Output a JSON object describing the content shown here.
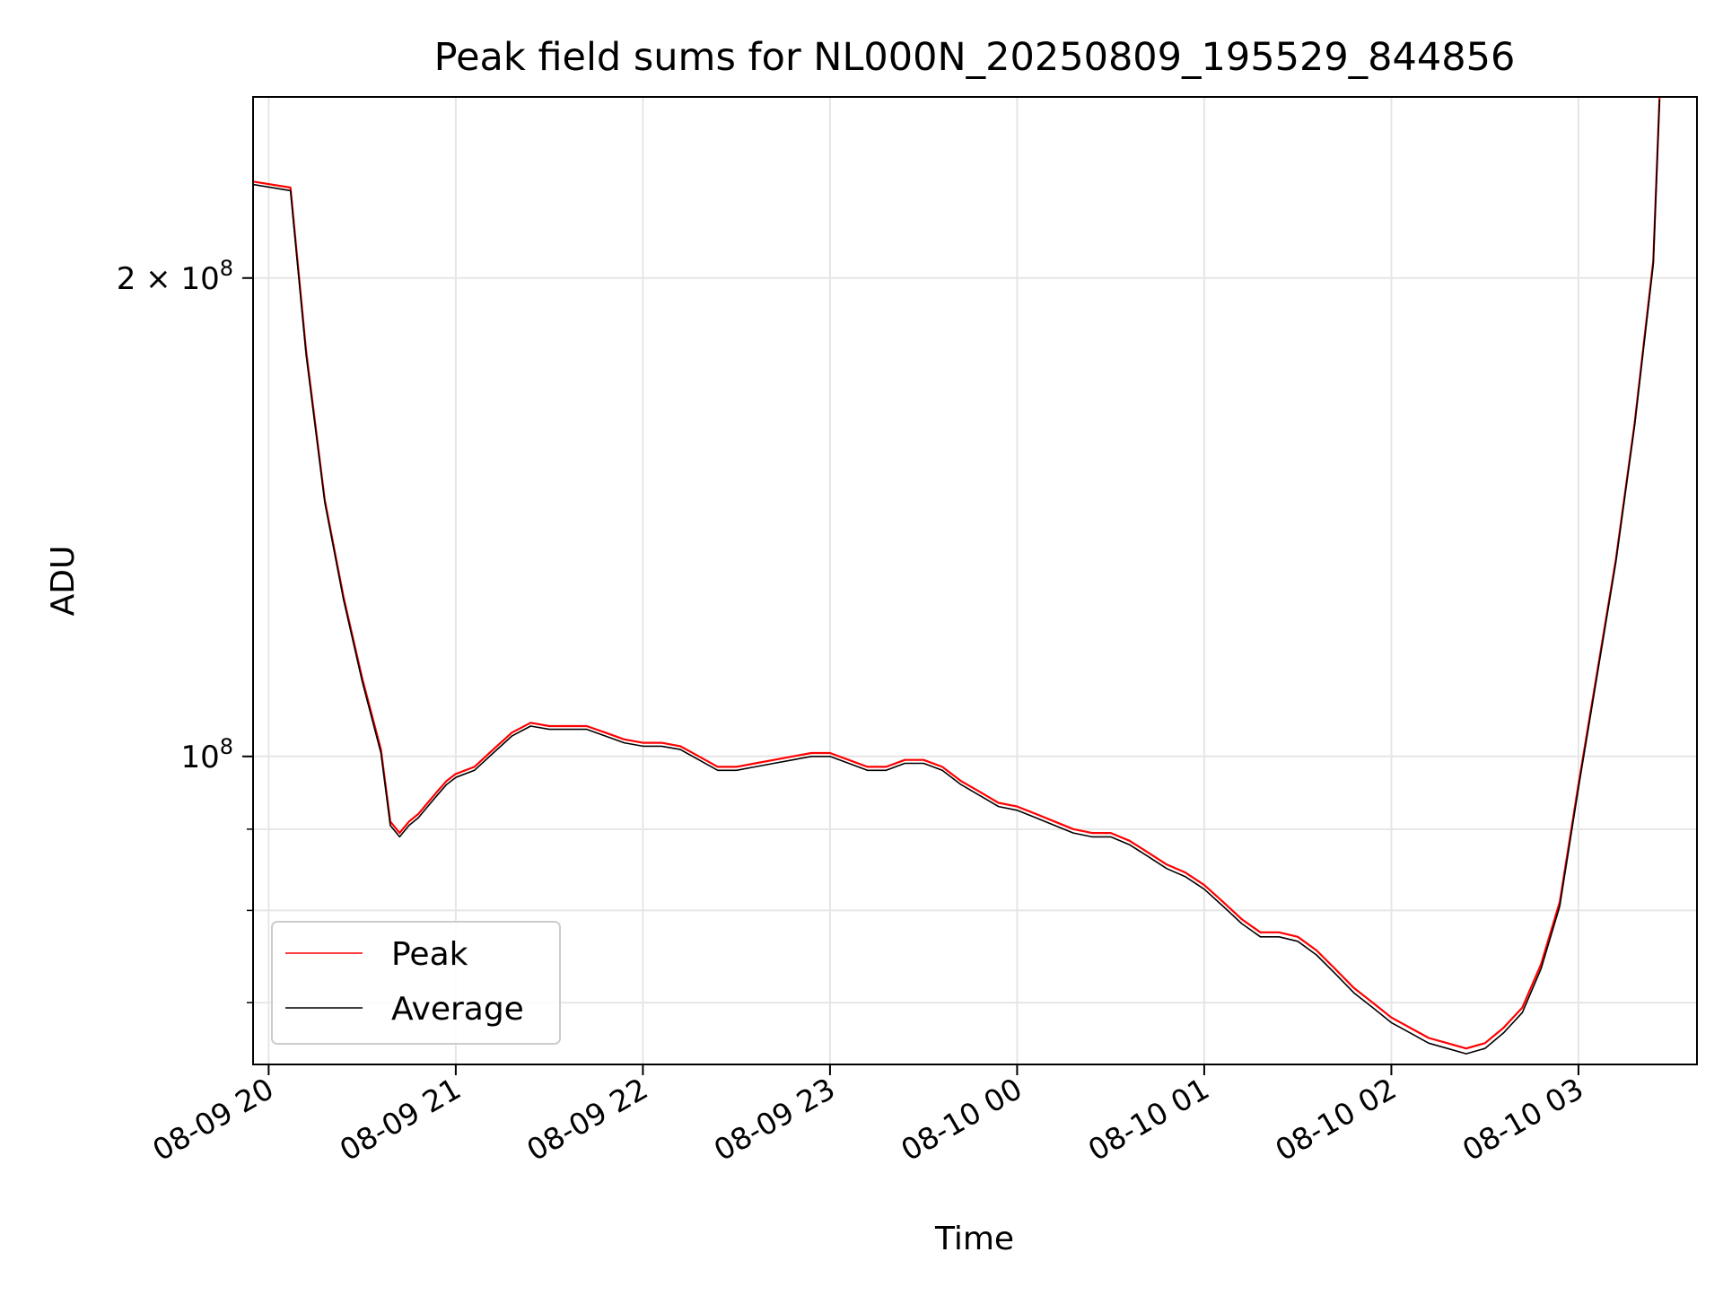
{
  "chart_data": {
    "type": "line",
    "title": "Peak field sums for NL000N_20250809_195529_844856",
    "xlabel": "Time",
    "ylabel": "ADU",
    "yscale": "log",
    "grid": true,
    "legend_position": "lower-left",
    "x_ticks": [
      "08-09 20",
      "08-09 21",
      "08-09 22",
      "08-09 23",
      "08-10 00",
      "08-10 01",
      "08-10 02",
      "08-10 03"
    ],
    "x_tick_values": [
      "2025-08-09 20:00",
      "2025-08-09 21:00",
      "2025-08-09 22:00",
      "2025-08-09 23:00",
      "2025-08-10 00:00",
      "2025-08-10 01:00",
      "2025-08-10 02:00",
      "2025-08-10 03:00"
    ],
    "y_major_ticks": [
      {
        "value": 100000000,
        "label": "10^8"
      },
      {
        "value": 200000000,
        "label": "2 × 10^8"
      }
    ],
    "y_minor_gridlines": [
      70000000,
      80000000,
      90000000
    ],
    "xlim": [
      "2025-08-09 19:55",
      "2025-08-10 03:38"
    ],
    "ylim": [
      64000000,
      260000000
    ],
    "series": [
      {
        "name": "Peak",
        "color": "#ff0000",
        "x": [
          "2025-08-09 19:55",
          "2025-08-09 20:07",
          "2025-08-09 20:12",
          "2025-08-09 20:18",
          "2025-08-09 20:24",
          "2025-08-09 20:30",
          "2025-08-09 20:36",
          "2025-08-09 20:39",
          "2025-08-09 20:42",
          "2025-08-09 20:45",
          "2025-08-09 20:48",
          "2025-08-09 20:51",
          "2025-08-09 20:54",
          "2025-08-09 20:57",
          "2025-08-09 21:00",
          "2025-08-09 21:06",
          "2025-08-09 21:12",
          "2025-08-09 21:18",
          "2025-08-09 21:24",
          "2025-08-09 21:30",
          "2025-08-09 21:36",
          "2025-08-09 21:42",
          "2025-08-09 21:48",
          "2025-08-09 21:54",
          "2025-08-09 22:00",
          "2025-08-09 22:06",
          "2025-08-09 22:12",
          "2025-08-09 22:18",
          "2025-08-09 22:24",
          "2025-08-09 22:30",
          "2025-08-09 22:36",
          "2025-08-09 22:42",
          "2025-08-09 22:48",
          "2025-08-09 22:54",
          "2025-08-09 23:00",
          "2025-08-09 23:06",
          "2025-08-09 23:12",
          "2025-08-09 23:18",
          "2025-08-09 23:24",
          "2025-08-09 23:30",
          "2025-08-09 23:36",
          "2025-08-09 23:42",
          "2025-08-09 23:48",
          "2025-08-09 23:54",
          "2025-08-10 00:00",
          "2025-08-10 00:06",
          "2025-08-10 00:12",
          "2025-08-10 00:18",
          "2025-08-10 00:24",
          "2025-08-10 00:30",
          "2025-08-10 00:36",
          "2025-08-10 00:42",
          "2025-08-10 00:48",
          "2025-08-10 00:54",
          "2025-08-10 01:00",
          "2025-08-10 01:06",
          "2025-08-10 01:12",
          "2025-08-10 01:18",
          "2025-08-10 01:24",
          "2025-08-10 01:30",
          "2025-08-10 01:36",
          "2025-08-10 01:42",
          "2025-08-10 01:48",
          "2025-08-10 01:54",
          "2025-08-10 02:00",
          "2025-08-10 02:06",
          "2025-08-10 02:12",
          "2025-08-10 02:18",
          "2025-08-10 02:24",
          "2025-08-10 02:30",
          "2025-08-10 02:36",
          "2025-08-10 02:42",
          "2025-08-10 02:48",
          "2025-08-10 02:54",
          "2025-08-10 03:00",
          "2025-08-10 03:06",
          "2025-08-10 03:12",
          "2025-08-10 03:18",
          "2025-08-10 03:24",
          "2025-08-10 03:26"
        ],
        "values": [
          230000000,
          228000000,
          180000000,
          145000000,
          126000000,
          112000000,
          101000000,
          91000000,
          89500000,
          91000000,
          92000000,
          93500000,
          95000000,
          96500000,
          97500000,
          98500000,
          101000000,
          103500000,
          105000000,
          104500000,
          104500000,
          104500000,
          103500000,
          102500000,
          102000000,
          102000000,
          101500000,
          100000000,
          98500000,
          98500000,
          99000000,
          99500000,
          100000000,
          100500000,
          100500000,
          99500000,
          98500000,
          98500000,
          99500000,
          99500000,
          98500000,
          96500000,
          95000000,
          93500000,
          93000000,
          92000000,
          91000000,
          90000000,
          89500000,
          89500000,
          88500000,
          87000000,
          85500000,
          84500000,
          83000000,
          81000000,
          79000000,
          77500000,
          77500000,
          77000000,
          75500000,
          73500000,
          71500000,
          70000000,
          68500000,
          67500000,
          66500000,
          66000000,
          65500000,
          66000000,
          67500000,
          69500000,
          74000000,
          81000000,
          96000000,
          113000000,
          133000000,
          162000000,
          205000000,
          260000000
        ]
      },
      {
        "name": "Average",
        "color": "#000000",
        "x": [
          "2025-08-09 19:55",
          "2025-08-09 20:07",
          "2025-08-09 20:12",
          "2025-08-09 20:18",
          "2025-08-09 20:24",
          "2025-08-09 20:30",
          "2025-08-09 20:36",
          "2025-08-09 20:39",
          "2025-08-09 20:42",
          "2025-08-09 20:45",
          "2025-08-09 20:48",
          "2025-08-09 20:51",
          "2025-08-09 20:54",
          "2025-08-09 20:57",
          "2025-08-09 21:00",
          "2025-08-09 21:06",
          "2025-08-09 21:12",
          "2025-08-09 21:18",
          "2025-08-09 21:24",
          "2025-08-09 21:30",
          "2025-08-09 21:36",
          "2025-08-09 21:42",
          "2025-08-09 21:48",
          "2025-08-09 21:54",
          "2025-08-09 22:00",
          "2025-08-09 22:06",
          "2025-08-09 22:12",
          "2025-08-09 22:18",
          "2025-08-09 22:24",
          "2025-08-09 22:30",
          "2025-08-09 22:36",
          "2025-08-09 22:42",
          "2025-08-09 22:48",
          "2025-08-09 22:54",
          "2025-08-09 23:00",
          "2025-08-09 23:06",
          "2025-08-09 23:12",
          "2025-08-09 23:18",
          "2025-08-09 23:24",
          "2025-08-09 23:30",
          "2025-08-09 23:36",
          "2025-08-09 23:42",
          "2025-08-09 23:48",
          "2025-08-09 23:54",
          "2025-08-10 00:00",
          "2025-08-10 00:06",
          "2025-08-10 00:12",
          "2025-08-10 00:18",
          "2025-08-10 00:24",
          "2025-08-10 00:30",
          "2025-08-10 00:36",
          "2025-08-10 00:42",
          "2025-08-10 00:48",
          "2025-08-10 00:54",
          "2025-08-10 01:00",
          "2025-08-10 01:06",
          "2025-08-10 01:12",
          "2025-08-10 01:18",
          "2025-08-10 01:24",
          "2025-08-10 01:30",
          "2025-08-10 01:36",
          "2025-08-10 01:42",
          "2025-08-10 01:48",
          "2025-08-10 01:54",
          "2025-08-10 02:00",
          "2025-08-10 02:06",
          "2025-08-10 02:12",
          "2025-08-10 02:18",
          "2025-08-10 02:24",
          "2025-08-10 02:30",
          "2025-08-10 02:36",
          "2025-08-10 02:42",
          "2025-08-10 02:48",
          "2025-08-10 02:54",
          "2025-08-10 03:00",
          "2025-08-10 03:06",
          "2025-08-10 03:12",
          "2025-08-10 03:18",
          "2025-08-10 03:24",
          "2025-08-10 03:26"
        ],
        "values": [
          229000000,
          227000000,
          179000000,
          144500000,
          125500000,
          111500000,
          100500000,
          90500000,
          89000000,
          90500000,
          91500000,
          93000000,
          94500000,
          96000000,
          97000000,
          98000000,
          100500000,
          103000000,
          104500000,
          104000000,
          104000000,
          104000000,
          103000000,
          102000000,
          101500000,
          101500000,
          101000000,
          99500000,
          98000000,
          98000000,
          98500000,
          99000000,
          99500000,
          100000000,
          100000000,
          99000000,
          98000000,
          98000000,
          99000000,
          99000000,
          98000000,
          96000000,
          94500000,
          93000000,
          92500000,
          91500000,
          90500000,
          89500000,
          89000000,
          89000000,
          88000000,
          86500000,
          85000000,
          84000000,
          82500000,
          80500000,
          78500000,
          77000000,
          77000000,
          76500000,
          75000000,
          73000000,
          71000000,
          69500000,
          68000000,
          67000000,
          66000000,
          65500000,
          65000000,
          65500000,
          67000000,
          69000000,
          73500000,
          80500000,
          95500000,
          112500000,
          132500000,
          161500000,
          204000000,
          259000000
        ]
      }
    ]
  }
}
